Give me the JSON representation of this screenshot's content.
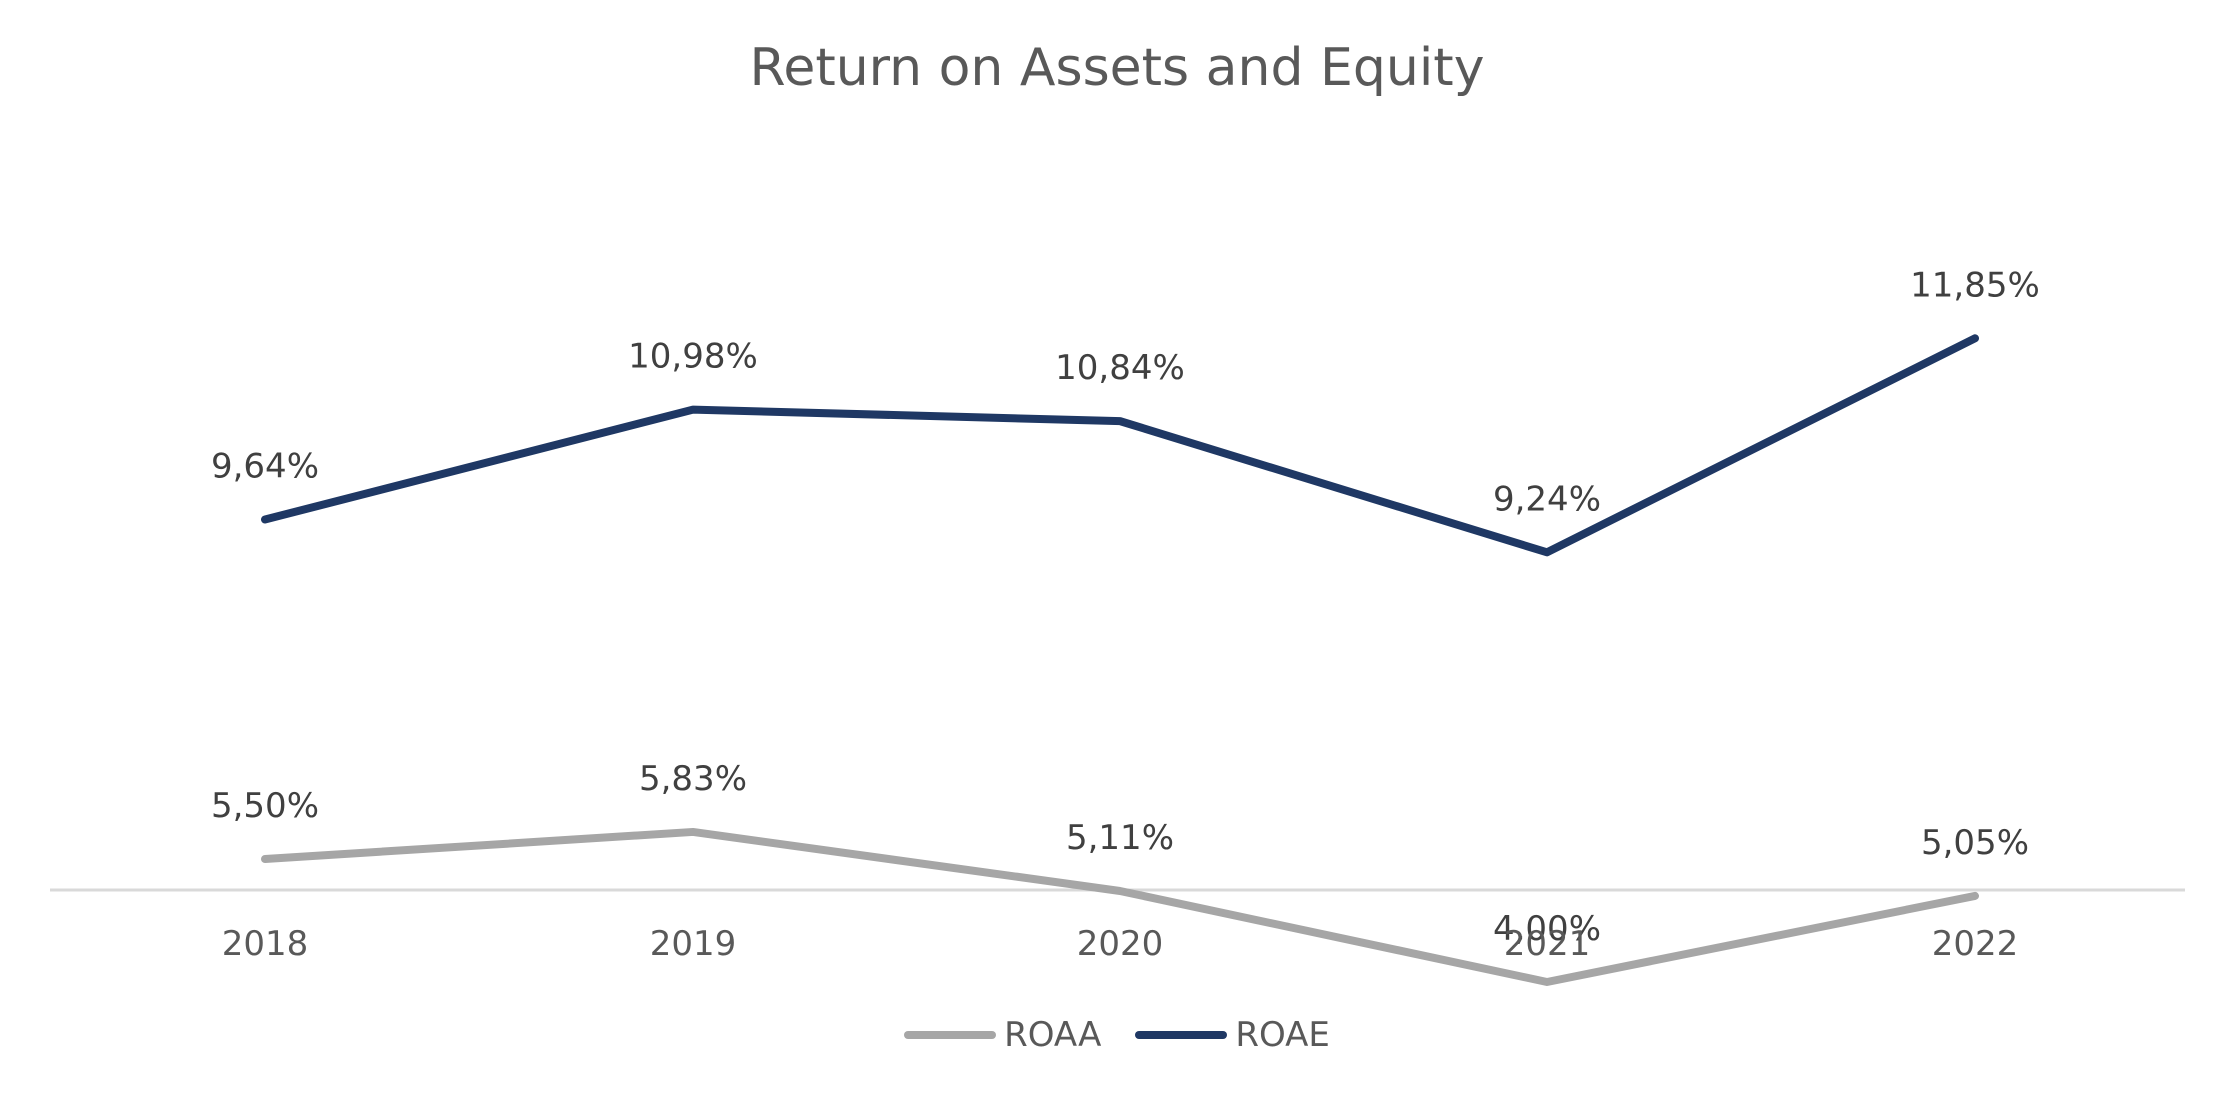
{
  "chart_data": {
    "type": "line",
    "title": "Return on Assets and Equity",
    "xlabel": "",
    "ylabel": "",
    "categories": [
      "2018",
      "2019",
      "2020",
      "2021",
      "2022"
    ],
    "series": [
      {
        "name": "ROAA",
        "values": [
          5.5,
          5.83,
          5.11,
          4.0,
          5.05
        ],
        "labels": [
          "5,50%",
          "5,83%",
          "5,11%",
          "4,00%",
          "5,05%"
        ],
        "color": "#a6a6a6"
      },
      {
        "name": "ROAE",
        "values": [
          9.64,
          10.98,
          10.84,
          9.24,
          11.85
        ],
        "labels": [
          "9,64%",
          "10,98%",
          "10,84%",
          "9,24%",
          "11,85%"
        ],
        "color": "#1f3864"
      }
    ],
    "ylim": [
      0,
      13
    ],
    "grid": false,
    "legend": "bottom"
  }
}
